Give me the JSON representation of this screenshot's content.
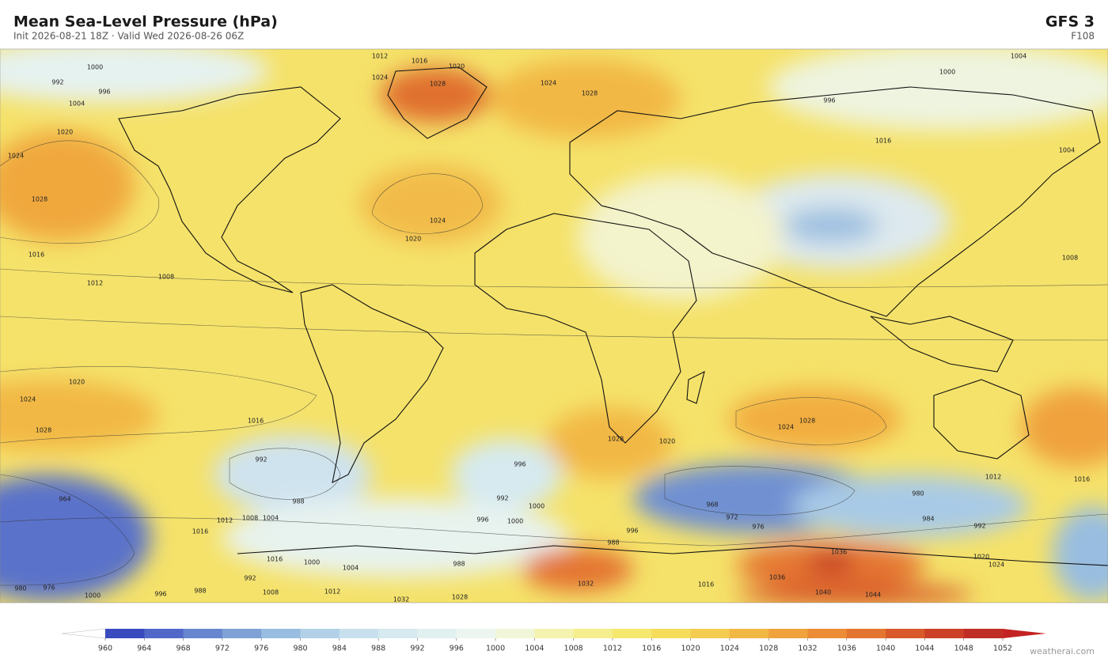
{
  "title": "Mean Sea-Level Pressure  (hPa)",
  "subtitle": "Init 2026-08-21 18Z  ·  Valid Wed 2026-08-26 06Z",
  "model": "GFS  3",
  "step": "F108",
  "credit": "weatherai.com",
  "colorbar": {
    "ticks": [
      960,
      964,
      968,
      972,
      976,
      980,
      984,
      988,
      992,
      996,
      1000,
      1004,
      1008,
      1012,
      1016,
      1020,
      1024,
      1028,
      1032,
      1036,
      1040,
      1044,
      1048,
      1052
    ],
    "colors": [
      "#3a4bbf",
      "#5268c8",
      "#6886d0",
      "#7fa2d6",
      "#98bde0",
      "#b2d1e8",
      "#c8e0ee",
      "#d6eaf0",
      "#e2f0f0",
      "#ecf5ef",
      "#f1f6d8",
      "#f5f3b0",
      "#f5ee8e",
      "#f5e86e",
      "#f5dc5a",
      "#f4cc50",
      "#f2b845",
      "#f0a23d",
      "#ec8c36",
      "#e47530",
      "#d85a2a",
      "#cb4027",
      "#bf2d25"
    ],
    "under_color": "#ffffff",
    "over_color": "#c42222"
  },
  "contour_labels": [
    "1000",
    "992",
    "996",
    "1004",
    "1020",
    "1024",
    "1028",
    "1016",
    "1012",
    "1008",
    "1012",
    "1016",
    "1020",
    "1024",
    "1028",
    "1024",
    "1028",
    "1024",
    "1020",
    "1004",
    "1000",
    "996",
    "1016",
    "1004",
    "1008",
    "1020",
    "1024",
    "1028",
    "1016",
    "1020",
    "1028",
    "1024",
    "1028",
    "992",
    "988",
    "996",
    "992",
    "1000",
    "964",
    "968",
    "972",
    "976",
    "980",
    "984",
    "992",
    "1012",
    "1016",
    "1012",
    "1008",
    "1004",
    "996",
    "1000",
    "996",
    "988",
    "1016",
    "1032",
    "1036",
    "1040",
    "1044",
    "1024",
    "1020",
    "1036",
    "992",
    "1008",
    "1012",
    "1032",
    "1028",
    "980",
    "976",
    "1000",
    "996",
    "988",
    "1004",
    "1000",
    "988",
    "1016",
    "1016"
  ]
}
